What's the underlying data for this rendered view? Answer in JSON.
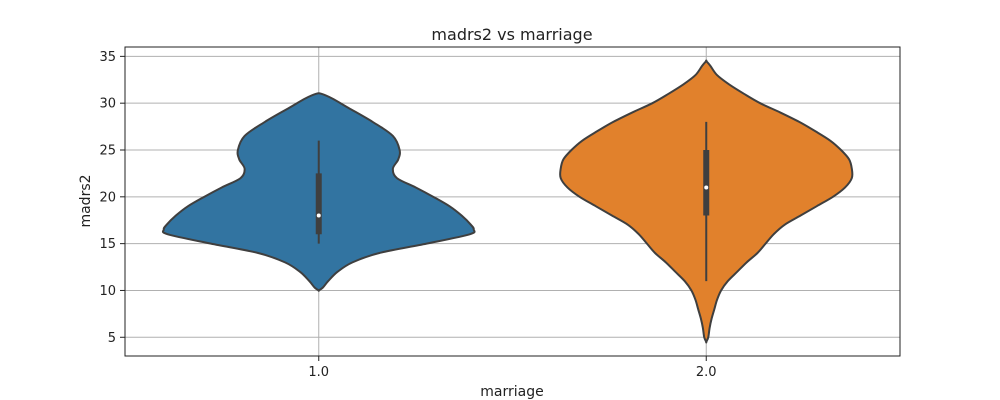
{
  "chart_data": {
    "type": "violin",
    "title": "madrs2 vs marriage",
    "xlabel": "marriage",
    "ylabel": "madrs2",
    "categories": [
      "1.0",
      "2.0"
    ],
    "ylim": [
      3,
      36
    ],
    "yticks": [
      5,
      10,
      15,
      20,
      25,
      30,
      35
    ],
    "grid": true,
    "series": [
      {
        "category": "1.0",
        "color": "#3274a1",
        "min": 15,
        "q1": 16,
        "median": 18,
        "q3": 22.5,
        "max": 26,
        "kde_max_y": 31,
        "kde_min_y": 10,
        "density": [
          [
            31,
            0.02
          ],
          [
            30.5,
            0.1
          ],
          [
            29.5,
            0.22
          ],
          [
            28,
            0.4
          ],
          [
            26.5,
            0.55
          ],
          [
            25,
            0.6
          ],
          [
            24,
            0.59
          ],
          [
            23,
            0.55
          ],
          [
            22,
            0.58
          ],
          [
            21,
            0.72
          ],
          [
            20,
            0.85
          ],
          [
            19,
            0.97
          ],
          [
            18,
            1.06
          ],
          [
            17,
            1.13
          ],
          [
            16.5,
            1.15
          ],
          [
            16,
            1.12
          ],
          [
            15,
            0.8
          ],
          [
            14,
            0.45
          ],
          [
            13,
            0.25
          ],
          [
            12,
            0.14
          ],
          [
            11,
            0.07
          ],
          [
            10.3,
            0.03
          ],
          [
            10,
            0.0
          ]
        ]
      },
      {
        "category": "2.0",
        "color": "#e1812c",
        "min": 11,
        "q1": 18,
        "median": 21,
        "q3": 25,
        "max": 28,
        "kde_max_y": 34.5,
        "kde_min_y": 4.5,
        "density": [
          [
            34.5,
            0.0
          ],
          [
            34,
            0.03
          ],
          [
            33,
            0.08
          ],
          [
            32,
            0.17
          ],
          [
            31,
            0.28
          ],
          [
            30,
            0.4
          ],
          [
            29,
            0.55
          ],
          [
            28,
            0.69
          ],
          [
            27,
            0.81
          ],
          [
            26,
            0.92
          ],
          [
            25,
            1.0
          ],
          [
            24,
            1.06
          ],
          [
            23,
            1.08
          ],
          [
            22,
            1.08
          ],
          [
            21,
            1.03
          ],
          [
            20,
            0.94
          ],
          [
            19,
            0.82
          ],
          [
            18,
            0.7
          ],
          [
            17,
            0.58
          ],
          [
            16,
            0.5
          ],
          [
            15,
            0.44
          ],
          [
            14,
            0.38
          ],
          [
            13,
            0.3
          ],
          [
            12,
            0.23
          ],
          [
            11,
            0.16
          ],
          [
            10,
            0.11
          ],
          [
            9,
            0.08
          ],
          [
            8,
            0.06
          ],
          [
            7,
            0.04
          ],
          [
            6,
            0.025
          ],
          [
            5,
            0.015
          ],
          [
            4.5,
            0.0
          ]
        ]
      }
    ]
  }
}
